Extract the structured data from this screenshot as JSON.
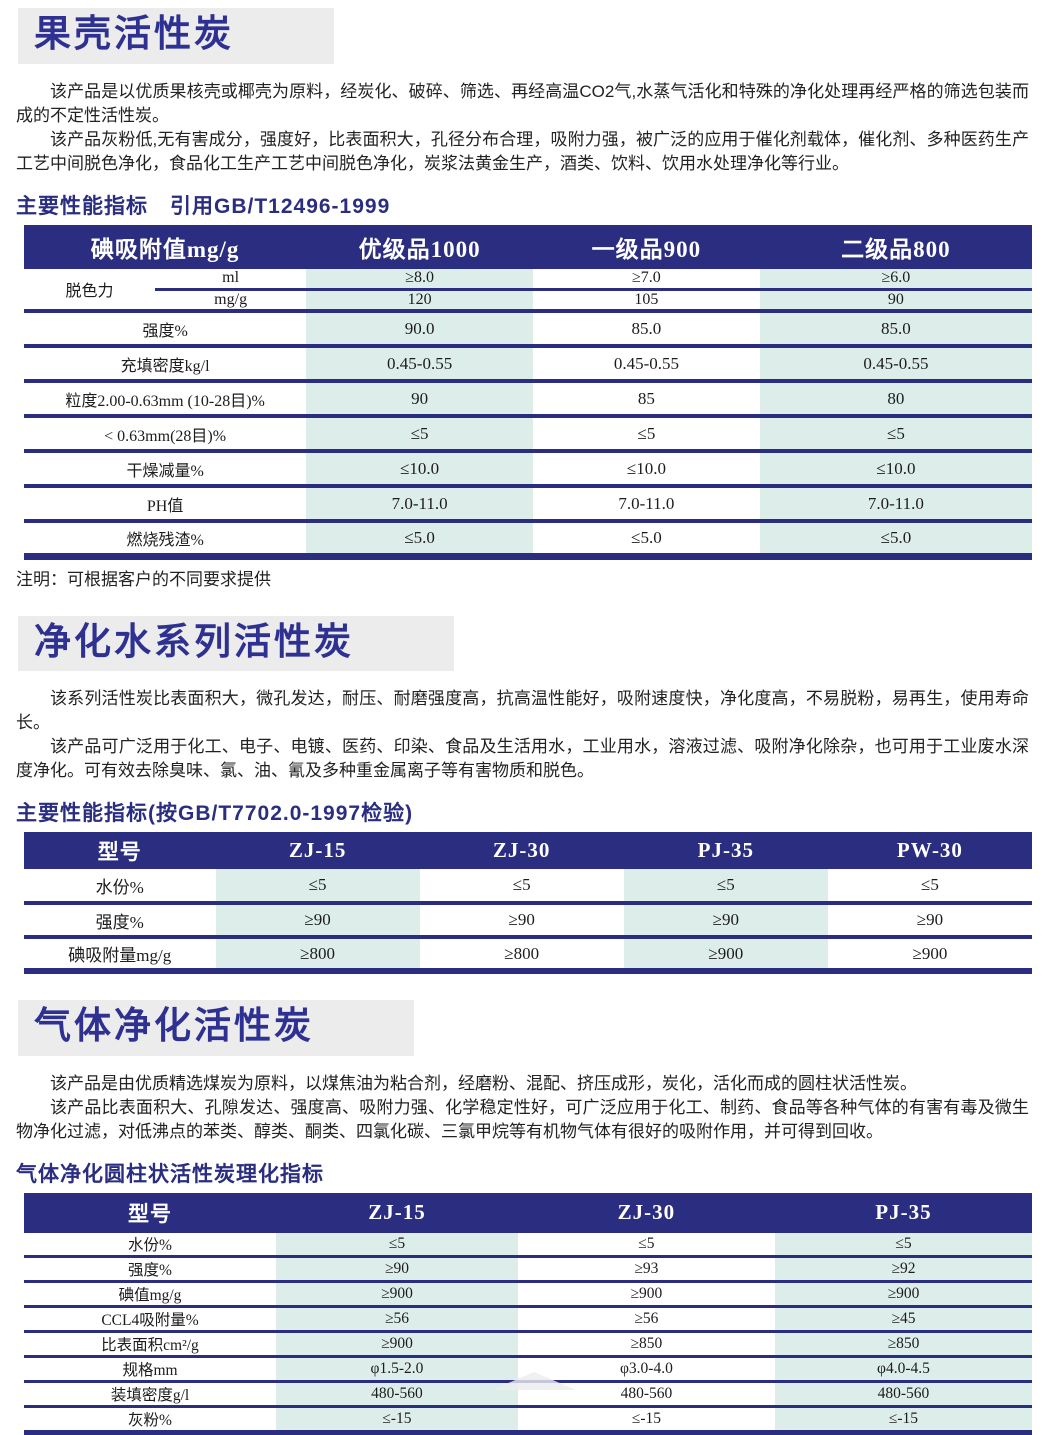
{
  "colors": {
    "navy": "#2a2d80",
    "title_blue": "#2e3192",
    "teal_cell": "#ddeeea",
    "title_box_gray": "#ececec"
  },
  "sections": [
    {
      "id": "shell",
      "title": "果壳活性炭",
      "paragraphs": [
        "该产品是以优质果核壳或椰壳为原料，经炭化、破碎、筛选、再经高温CO2气,水蒸气活化和特殊的净化处理再经严格的筛选包装而成的不定性活性炭。",
        "该产品灰粉低,无有害成分，强度好，比表面积大，孔径分布合理，吸附力强，被广泛的应用于催化剂载体，催化剂、多种医药生产工艺中间脱色净化，食品化工生产工艺中间脱色净化，炭浆法黄金生产，酒类、饮料、饮用水处理净化等行业。"
      ],
      "caption": "主要性能指标　引用GB/T12496-1999",
      "table": {
        "headers": [
          "碘吸附值mg/g",
          "优级品1000",
          "一级品900",
          "二级品800"
        ],
        "group_row": {
          "label": "脱色力",
          "sub_rows": [
            {
              "label": "ml",
              "values": [
                "≥8.0",
                "≥7.0",
                "≥6.0"
              ]
            },
            {
              "label": "mg/g",
              "values": [
                "120",
                "105",
                "90"
              ]
            }
          ]
        },
        "rows": [
          {
            "label": "强度%",
            "values": [
              "90.0",
              "85.0",
              "85.0"
            ]
          },
          {
            "label": "充填密度kg/l",
            "values": [
              "0.45-0.55",
              "0.45-0.55",
              "0.45-0.55"
            ]
          },
          {
            "label": "粒度2.00-0.63mm (10-28目)%",
            "values": [
              "90",
              "85",
              "80"
            ]
          },
          {
            "label": "< 0.63mm(28目)%",
            "values": [
              "≤5",
              "≤5",
              "≤5"
            ]
          },
          {
            "label": "干燥减量%",
            "values": [
              "≤10.0",
              "≤10.0",
              "≤10.0"
            ]
          },
          {
            "label": "PH值",
            "values": [
              "7.0-11.0",
              "7.0-11.0",
              "7.0-11.0"
            ]
          },
          {
            "label": "燃烧残渣%",
            "values": [
              "≤5.0",
              "≤5.0",
              "≤5.0"
            ]
          }
        ]
      },
      "note": "注明：可根据客户的不同要求提供"
    },
    {
      "id": "water",
      "title": "净化水系列活性炭",
      "paragraphs": [
        "该系列活性炭比表面积大，微孔发达，耐压、耐磨强度高，抗高温性能好，吸附速度快，净化度高，不易脱粉，易再生，使用寿命长。",
        "该产品可广泛用于化工、电子、电镀、医药、印染、食品及生活用水，工业用水，溶液过滤、吸附净化除杂，也可用于工业废水深度净化。可有效去除臭味、氯、油、氰及多种重金属离子等有害物质和脱色。"
      ],
      "caption": "主要性能指标(按GB/T7702.0-1997检验)",
      "table": {
        "headers": [
          "型号",
          "ZJ-15",
          "ZJ-30",
          "PJ-35",
          "PW-30"
        ],
        "rows": [
          {
            "label": "水份%",
            "values": [
              "≤5",
              "≤5",
              "≤5",
              "≤5"
            ]
          },
          {
            "label": "强度%",
            "values": [
              "≥90",
              "≥90",
              "≥90",
              "≥90"
            ]
          },
          {
            "label": "碘吸附量mg/g",
            "values": [
              "≥800",
              "≥800",
              "≥900",
              "≥900"
            ]
          }
        ]
      }
    },
    {
      "id": "gas",
      "title": "气体净化活性炭",
      "paragraphs": [
        "该产品是由优质精选煤炭为原料，以煤焦油为粘合剂，经磨粉、混配、挤压成形，炭化，活化而成的圆柱状活性炭。",
        "该产品比表面积大、孔隙发达、强度高、吸附力强、化学稳定性好，可广泛应用于化工、制药、食品等各种气体的有害有毒及微生物净化过滤，对低沸点的苯类、醇类、酮类、四氯化碳、三氯甲烷等有机物气体有很好的吸附作用，并可得到回收。"
      ],
      "caption": "气体净化圆柱状活性炭理化指标",
      "table": {
        "headers": [
          "型号",
          "ZJ-15",
          "ZJ-30",
          "PJ-35"
        ],
        "rows": [
          {
            "label": "水份%",
            "values": [
              "≤5",
              "≤5",
              "≤5"
            ]
          },
          {
            "label": "强度%",
            "values": [
              "≥90",
              "≥93",
              "≥92"
            ]
          },
          {
            "label": "碘值mg/g",
            "values": [
              "≥900",
              "≥900",
              "≥900"
            ]
          },
          {
            "label": "CCL4吸附量%",
            "values": [
              "≥56",
              "≥56",
              "≥45"
            ]
          },
          {
            "label": "比表面积cm²/g",
            "values": [
              "≥900",
              "≥850",
              "≥850"
            ]
          },
          {
            "label": "规格mm",
            "values": [
              "φ1.5-2.0",
              "φ3.0-4.0",
              "φ4.0-4.5"
            ]
          },
          {
            "label": "装填密度g/l",
            "values": [
              "480-560",
              "480-560",
              "480-560"
            ]
          },
          {
            "label": "灰粉%",
            "values": [
              "≤-15",
              "≤-15",
              "≤-15"
            ]
          }
        ]
      }
    }
  ]
}
